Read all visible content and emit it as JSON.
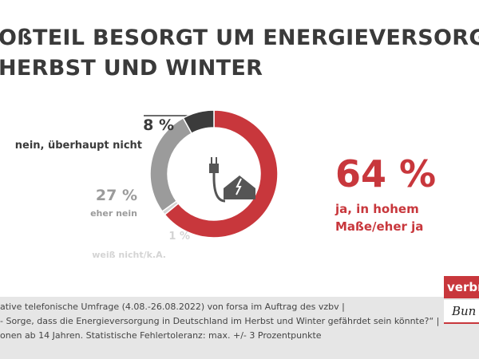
{
  "chart_data": {
    "type": "pie",
    "title_lines": [
      "OßTEIL BESORGT UM ENERGIEVERSORGUNG",
      "HERBST UND WINTER"
    ],
    "categories": [
      "ja, in hohem Maße/eher ja",
      "weiß nicht/k.A.",
      "eher nein",
      "nein, überhaupt nicht"
    ],
    "values": [
      64,
      1,
      27,
      8
    ],
    "value_labels": [
      "64 %",
      "1 %",
      "27 %",
      "8 %"
    ],
    "colors": [
      "#c8373c",
      "#d4d4d4",
      "#9b9b9b",
      "#3b3b3b"
    ],
    "footnote_lines": [
      "ative telefonische Umfrage (4.08.-26.08.2022) von forsa im Auftrag des vzbv |",
      "- Sorge, dass die Energieversorgung in Deutschland im Herbst und Winter gefährdet sein könnte?“ |",
      "onen ab 14 Jahren. Statistische Fehlertoleranz: max. +/- 3 Prozentpunkte"
    ],
    "logo": [
      "verbra",
      "Bun"
    ]
  }
}
